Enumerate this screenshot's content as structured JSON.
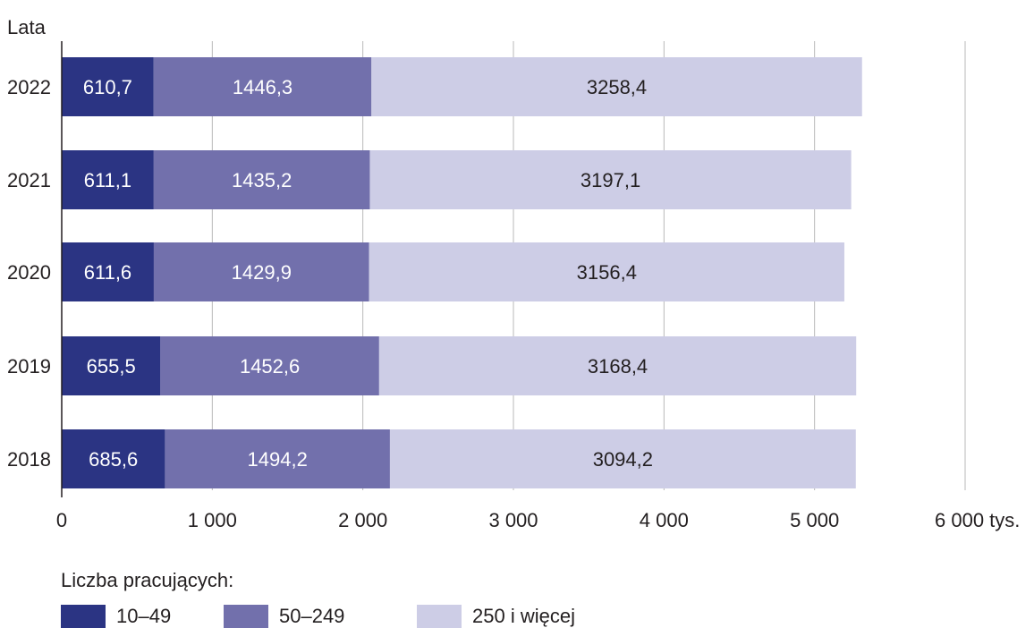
{
  "chart_data": {
    "type": "bar",
    "orientation": "horizontal",
    "stacked": true,
    "yaxis_title": "Lata",
    "xlim": [
      0,
      6000
    ],
    "x_ticks": [
      "0",
      "1 000",
      "2 000",
      "3 000",
      "4 000",
      "5 000",
      "6 000 tys."
    ],
    "x_tick_values": [
      0,
      1000,
      2000,
      3000,
      4000,
      5000,
      6000
    ],
    "grid": true,
    "categories": [
      "2022",
      "2021",
      "2020",
      "2019",
      "2018"
    ],
    "series": [
      {
        "name": "10–49",
        "color": "#2b3483",
        "label_color": "#ffffff",
        "values": [
          610.7,
          611.1,
          611.6,
          655.5,
          685.6
        ],
        "labels": [
          "610,7",
          "611,1",
          "611,6",
          "655,5",
          "685,6"
        ]
      },
      {
        "name": "50–249",
        "color": "#7270ac",
        "label_color": "#ffffff",
        "values": [
          1446.3,
          1435.2,
          1429.9,
          1452.6,
          1494.2
        ],
        "labels": [
          "1446,3",
          "1435,2",
          "1429,9",
          "1452,6",
          "1494,2"
        ]
      },
      {
        "name": "250 i więcej",
        "color": "#cdcde6",
        "label_color": "#231f20",
        "values": [
          3258.4,
          3197.1,
          3156.4,
          3168.4,
          3094.2
        ],
        "labels": [
          "3258,4",
          "3197,1",
          "3156,4",
          "3168,4",
          "3094,2"
        ]
      }
    ],
    "legend_title": "Liczba pracujących:",
    "legend_position": "bottom"
  }
}
